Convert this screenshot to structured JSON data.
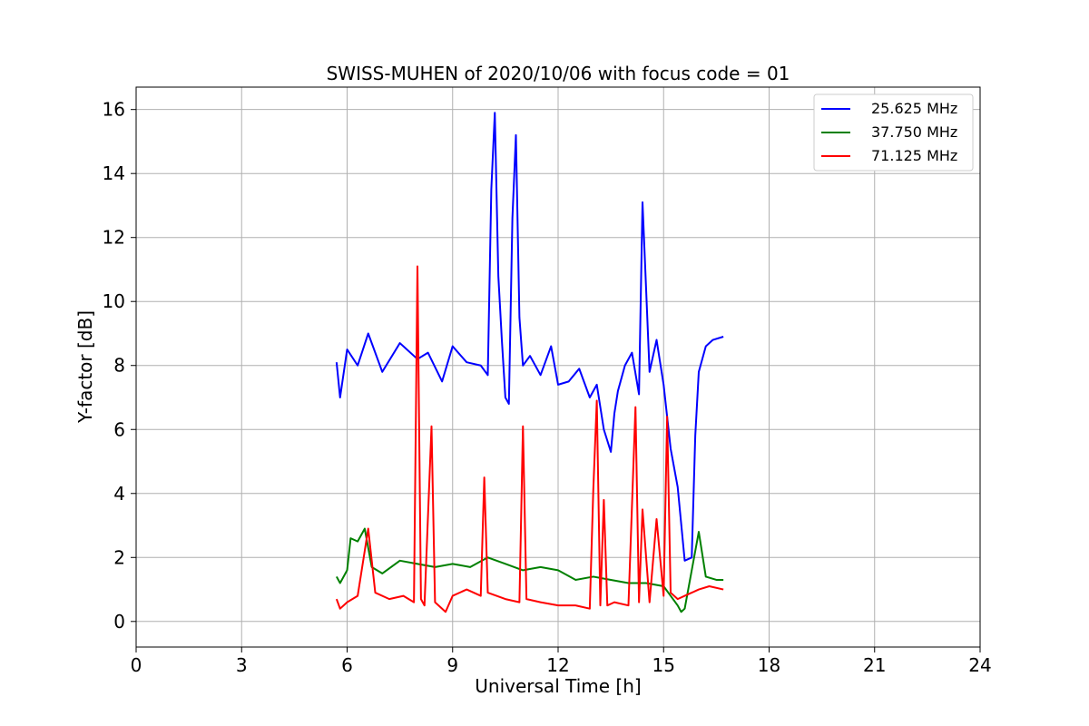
{
  "chart_data": {
    "type": "line",
    "title": "SWISS-MUHEN of 2020/10/06 with focus code = 01",
    "xlabel": "Universal Time [h]",
    "ylabel": "Y-factor [dB]",
    "xlim": [
      0,
      24
    ],
    "ylim": [
      -0.8,
      16.7
    ],
    "xticks": [
      0,
      3,
      6,
      9,
      12,
      15,
      18,
      21,
      24
    ],
    "yticks": [
      0,
      2,
      4,
      6,
      8,
      10,
      12,
      14,
      16
    ],
    "grid": true,
    "legend_position": "top-right",
    "series": [
      {
        "name": "25.625 MHz",
        "color": "#0000ff",
        "x": [
          5.7,
          5.8,
          6.0,
          6.3,
          6.6,
          7.0,
          7.5,
          8.0,
          8.3,
          8.7,
          9.0,
          9.4,
          9.8,
          10.0,
          10.1,
          10.2,
          10.3,
          10.4,
          10.5,
          10.6,
          10.7,
          10.8,
          10.9,
          11.0,
          11.2,
          11.5,
          11.8,
          12.0,
          12.3,
          12.6,
          12.9,
          13.1,
          13.3,
          13.5,
          13.6,
          13.7,
          13.9,
          14.1,
          14.3,
          14.4,
          14.6,
          14.8,
          15.0,
          15.2,
          15.4,
          15.6,
          15.8,
          15.9,
          16.0,
          16.2,
          16.4,
          16.7
        ],
        "y": [
          8.1,
          7.0,
          8.5,
          8.0,
          9.0,
          7.8,
          8.7,
          8.2,
          8.4,
          7.5,
          8.6,
          8.1,
          8.0,
          7.7,
          13.5,
          15.9,
          10.8,
          8.8,
          7.0,
          6.8,
          12.6,
          15.2,
          9.5,
          8.0,
          8.3,
          7.7,
          8.6,
          7.4,
          7.5,
          7.9,
          7.0,
          7.4,
          6.0,
          5.3,
          6.5,
          7.2,
          8.0,
          8.4,
          7.1,
          13.1,
          7.8,
          8.8,
          7.4,
          5.4,
          4.2,
          1.9,
          2.0,
          5.8,
          7.8,
          8.6,
          8.8,
          8.9
        ]
      },
      {
        "name": "37.750 MHz",
        "color": "#008000",
        "x": [
          5.7,
          5.8,
          6.0,
          6.1,
          6.3,
          6.5,
          6.7,
          7.0,
          7.5,
          8.0,
          8.5,
          9.0,
          9.5,
          10.0,
          10.5,
          11.0,
          11.5,
          12.0,
          12.5,
          13.0,
          13.5,
          14.0,
          14.5,
          15.0,
          15.2,
          15.4,
          15.5,
          15.6,
          15.8,
          16.0,
          16.2,
          16.5,
          16.7
        ],
        "y": [
          1.4,
          1.2,
          1.6,
          2.6,
          2.5,
          2.9,
          1.7,
          1.5,
          1.9,
          1.8,
          1.7,
          1.8,
          1.7,
          2.0,
          1.8,
          1.6,
          1.7,
          1.6,
          1.3,
          1.4,
          1.3,
          1.2,
          1.2,
          1.1,
          0.8,
          0.5,
          0.3,
          0.4,
          1.6,
          2.8,
          1.4,
          1.3,
          1.3
        ]
      },
      {
        "name": "71.125 MHz",
        "color": "#ff0000",
        "x": [
          5.7,
          5.8,
          6.0,
          6.3,
          6.6,
          6.8,
          7.2,
          7.6,
          7.9,
          8.0,
          8.1,
          8.2,
          8.4,
          8.5,
          8.8,
          9.0,
          9.4,
          9.8,
          9.9,
          10.0,
          10.5,
          10.9,
          11.0,
          11.1,
          11.5,
          12.0,
          12.5,
          12.9,
          13.0,
          13.1,
          13.2,
          13.3,
          13.4,
          13.6,
          14.0,
          14.2,
          14.3,
          14.4,
          14.6,
          14.8,
          15.0,
          15.1,
          15.2,
          15.4,
          15.6,
          15.8,
          16.0,
          16.3,
          16.7
        ],
        "y": [
          0.7,
          0.4,
          0.6,
          0.8,
          2.9,
          0.9,
          0.7,
          0.8,
          0.6,
          11.1,
          0.7,
          0.5,
          6.1,
          0.6,
          0.3,
          0.8,
          1.0,
          0.8,
          4.5,
          0.9,
          0.7,
          0.6,
          6.1,
          0.7,
          0.6,
          0.5,
          0.5,
          0.4,
          4.1,
          6.9,
          0.5,
          3.8,
          0.5,
          0.6,
          0.5,
          6.7,
          0.6,
          3.5,
          0.6,
          3.2,
          0.8,
          6.4,
          0.9,
          0.7,
          0.8,
          0.9,
          1.0,
          1.1,
          1.0
        ]
      }
    ]
  }
}
